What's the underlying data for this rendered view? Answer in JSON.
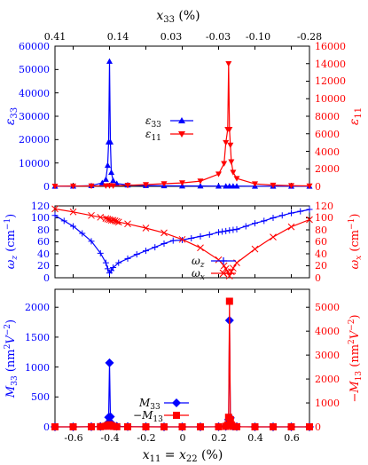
{
  "chart_data": [
    {
      "type": "line",
      "top_axis": {
        "label": "x33 (%)",
        "tick_labels": [
          "0.41",
          "0.14",
          "0.03",
          "-0.03",
          "-0.10",
          "-0.28"
        ]
      },
      "ylabel_left": "ε33",
      "ylabel_right": "ε11",
      "ylim_left": [
        0,
        60000
      ],
      "yticks_left": [
        "0",
        "10000",
        "20000",
        "30000",
        "40000",
        "50000",
        "60000"
      ],
      "ylim_right": [
        0,
        16000
      ],
      "yticks_right": [
        "0",
        "2000",
        "4000",
        "6000",
        "8000",
        "10000",
        "12000",
        "14000",
        "16000"
      ],
      "xlim": [
        -0.7,
        0.7
      ],
      "series": [
        {
          "name": "ε33",
          "color": "#0000ff",
          "marker": "triangle-up",
          "axis": "left",
          "x": [
            -0.7,
            -0.6,
            -0.5,
            -0.44,
            -0.42,
            -0.41,
            -0.405,
            -0.4,
            -0.395,
            -0.39,
            -0.38,
            -0.36,
            -0.3,
            -0.2,
            -0.1,
            0,
            0.1,
            0.2,
            0.24,
            0.26,
            0.28,
            0.3,
            0.4,
            0.5,
            0.6,
            0.7
          ],
          "y": [
            50,
            100,
            300,
            1500,
            3000,
            9000,
            19000,
            53500,
            19000,
            6000,
            2500,
            1200,
            600,
            350,
            250,
            180,
            150,
            120,
            110,
            100,
            100,
            100,
            80,
            70,
            60,
            50
          ]
        },
        {
          "name": "ε11",
          "color": "#ff0000",
          "marker": "triangle-down",
          "axis": "right",
          "x": [
            -0.7,
            -0.6,
            -0.5,
            -0.42,
            -0.4,
            -0.38,
            -0.3,
            -0.2,
            -0.1,
            0,
            0.1,
            0.2,
            0.23,
            0.24,
            0.25,
            0.255,
            0.26,
            0.265,
            0.27,
            0.28,
            0.3,
            0.4,
            0.5,
            0.6,
            0.7
          ],
          "y": [
            20,
            30,
            40,
            60,
            80,
            60,
            120,
            200,
            300,
            400,
            600,
            1400,
            2600,
            5000,
            6500,
            14000,
            6500,
            4700,
            2800,
            1600,
            900,
            280,
            140,
            80,
            50
          ]
        }
      ]
    },
    {
      "type": "line",
      "ylabel_left": "ωz (cm−1)",
      "ylabel_right": "ωx (cm−1)",
      "ylim_left": [
        0,
        120
      ],
      "yticks_left": [
        "0",
        "20",
        "40",
        "60",
        "80",
        "100",
        "120"
      ],
      "ylim_right": [
        0,
        120
      ],
      "yticks_right": [
        "0",
        "20",
        "40",
        "60",
        "80",
        "100",
        "120"
      ],
      "xlim": [
        -0.7,
        0.7
      ],
      "series": [
        {
          "name": "ωz",
          "color": "#0000ff",
          "marker": "plus",
          "axis": "left",
          "x": [
            -0.7,
            -0.65,
            -0.6,
            -0.55,
            -0.5,
            -0.45,
            -0.42,
            -0.41,
            -0.4,
            -0.39,
            -0.38,
            -0.35,
            -0.3,
            -0.25,
            -0.2,
            -0.15,
            -0.1,
            -0.05,
            0,
            0.05,
            0.1,
            0.15,
            0.2,
            0.22,
            0.24,
            0.26,
            0.28,
            0.3,
            0.35,
            0.4,
            0.45,
            0.5,
            0.55,
            0.6,
            0.65,
            0.7
          ],
          "y": [
            104,
            95,
            86,
            74,
            61,
            41,
            25,
            15,
            8,
            12,
            17,
            25,
            32,
            39,
            45,
            51,
            57,
            62,
            63,
            66,
            69,
            72,
            76,
            77,
            78,
            79,
            80,
            81,
            86,
            91,
            95,
            100,
            104,
            108,
            111,
            114
          ]
        },
        {
          "name": "ωx",
          "color": "#ff0000",
          "marker": "cross",
          "axis": "right",
          "x": [
            -0.7,
            -0.6,
            -0.5,
            -0.45,
            -0.42,
            -0.41,
            -0.4,
            -0.39,
            -0.38,
            -0.37,
            -0.36,
            -0.35,
            -0.3,
            -0.2,
            -0.1,
            0,
            0.1,
            0.2,
            0.23,
            0.24,
            0.25,
            0.26,
            0.27,
            0.28,
            0.3,
            0.4,
            0.5,
            0.6,
            0.7
          ],
          "y": [
            115,
            110,
            104,
            101,
            99,
            98,
            97,
            96,
            96,
            95,
            94,
            93,
            90,
            83,
            75,
            64,
            50,
            30,
            20,
            15,
            10,
            3,
            10,
            16,
            25,
            48,
            68,
            85,
            97
          ]
        }
      ]
    },
    {
      "type": "line",
      "xlabel": "x11 = x22 (%)",
      "ylabel_left": "M33 (nm²V−2)",
      "ylabel_right": "−M13 (nm²V−2)",
      "ylim_left": [
        0,
        2300
      ],
      "yticks_left": [
        "0",
        "500",
        "1000",
        "1500",
        "2000"
      ],
      "ylim_right": [
        0,
        5750
      ],
      "yticks_right": [
        "0",
        "1000",
        "2000",
        "3000",
        "4000",
        "5000"
      ],
      "xlim": [
        -0.7,
        0.7
      ],
      "xticks": [
        "-0.6",
        "-0.4",
        "-0.2",
        "0",
        "0.2",
        "0.4",
        "0.6"
      ],
      "series": [
        {
          "name": "M33",
          "color": "#0000ff",
          "marker": "diamond",
          "axis": "left",
          "x": [
            -0.7,
            -0.6,
            -0.5,
            -0.45,
            -0.42,
            -0.41,
            -0.405,
            -0.4,
            -0.395,
            -0.39,
            -0.38,
            -0.36,
            -0.3,
            -0.2,
            -0.1,
            0,
            0.1,
            0.2,
            0.24,
            0.25,
            0.255,
            0.26,
            0.265,
            0.27,
            0.28,
            0.3,
            0.4,
            0.5,
            0.6,
            0.7
          ],
          "y": [
            0,
            0,
            2,
            5,
            20,
            60,
            160,
            1070,
            170,
            60,
            25,
            10,
            3,
            1,
            0,
            0,
            0,
            2,
            8,
            40,
            120,
            1780,
            150,
            40,
            10,
            3,
            0,
            0,
            0,
            0
          ]
        },
        {
          "name": "−M13",
          "color": "#ff0000",
          "marker": "square",
          "axis": "right",
          "x": [
            -0.7,
            -0.6,
            -0.5,
            -0.45,
            -0.42,
            -0.41,
            -0.4,
            -0.39,
            -0.38,
            -0.36,
            -0.3,
            -0.2,
            -0.1,
            0,
            0.1,
            0.2,
            0.24,
            0.25,
            0.255,
            0.26,
            0.265,
            0.27,
            0.28,
            0.3,
            0.4,
            0.5,
            0.6,
            0.7
          ],
          "y": [
            0,
            0,
            3,
            8,
            25,
            60,
            90,
            50,
            20,
            6,
            2,
            0,
            0,
            0,
            0,
            4,
            20,
            80,
            400,
            5250,
            300,
            80,
            20,
            5,
            0,
            0,
            0,
            0
          ]
        }
      ]
    }
  ]
}
